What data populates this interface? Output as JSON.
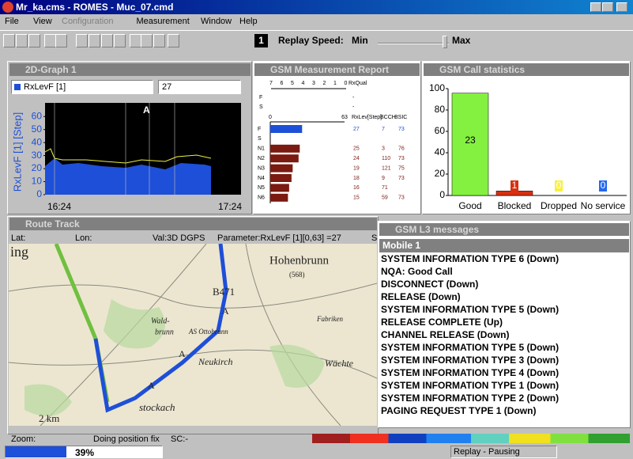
{
  "window": {
    "title": "Mr_ka.cms - ROMES - Muc_07.cmd"
  },
  "menu": [
    "File",
    "View",
    "Configuration",
    "Measurement",
    "Window",
    "Help"
  ],
  "toolbar": {
    "badge": "1",
    "replay_label": "Replay Speed:",
    "min": "Min",
    "max": "Max"
  },
  "graph_2d": {
    "title": "2D-Graph 1",
    "parameter": "RxLevF [1]",
    "value": "27",
    "y_label": "RxLevF [1] [Step]",
    "ylim": [
      0,
      65
    ],
    "yticks": [
      0,
      10,
      20,
      30,
      40,
      50,
      60
    ],
    "x_labels": [
      "16:24",
      "17:24"
    ],
    "marker": "A"
  },
  "measurement_report": {
    "title": "GSM Measurement Report",
    "rxqual_scale": [
      "7",
      "6",
      "5",
      "4",
      "3",
      "2",
      "1",
      "0"
    ],
    "rxqual_label": "RxQual",
    "rxqual_rows": [
      "F",
      "S"
    ],
    "rxqual_values": [
      "-",
      "-"
    ],
    "xlim": [
      0,
      63
    ],
    "columns": [
      "RxLev[Step]",
      "BCCH",
      "BSIC"
    ],
    "rows": [
      {
        "name": "F",
        "rxlev": 27,
        "bcch": 7,
        "bsic": 73
      },
      {
        "name": "S",
        "rxlev": null,
        "bcch": null,
        "bsic": null
      },
      {
        "name": "N1",
        "rxlev": 25,
        "bcch": 3,
        "bsic": 76
      },
      {
        "name": "N2",
        "rxlev": 24,
        "bcch": 110,
        "bsic": 73
      },
      {
        "name": "N3",
        "rxlev": 19,
        "bcch": 121,
        "bsic": 75
      },
      {
        "name": "N4",
        "rxlev": 18,
        "bcch": 9,
        "bsic": 73
      },
      {
        "name": "N5",
        "rxlev": 16,
        "bcch": 71,
        "bsic": null
      },
      {
        "name": "N6",
        "rxlev": 15,
        "bcch": 59,
        "bsic": 73
      }
    ],
    "serving_color": "#1e4fd8",
    "neighbour_color": "#7a1a10"
  },
  "call_statistics": {
    "title": "GSM Call statistics",
    "categories": [
      "Good",
      "Blocked",
      "Dropped",
      "No service"
    ],
    "values": [
      95.8,
      4.2,
      0,
      0
    ],
    "counts": [
      23,
      1,
      0,
      0
    ],
    "colors": [
      "#84f040",
      "#d83010",
      "#f8f040",
      "#2468f0"
    ],
    "ylim": [
      0,
      100
    ],
    "yticks": [
      0,
      20,
      40,
      60,
      80,
      100
    ]
  },
  "route_track": {
    "title": "Route Track",
    "lat": "Lat:",
    "lon": "Lon:",
    "val": "Val:3D DGPS",
    "parameter": "Parameter:RxLevF [1][0,63] =27",
    "extra": "S",
    "map_labels": [
      "ing",
      "Hohenbrunn",
      "(568)",
      "B471",
      "Wald-",
      "brunn",
      "AS Ottobrunn",
      "Neukirch",
      "Fabriken",
      "Wächte",
      "stockach",
      "2 km",
      "A",
      "A",
      "A"
    ]
  },
  "l3_messages": {
    "title": "GSM L3 messages",
    "mobile": "Mobile 1",
    "messages": [
      "SYSTEM INFORMATION TYPE 6 (Down)",
      "NQA: Good Call",
      "DISCONNECT (Down)",
      "RELEASE (Down)",
      "SYSTEM INFORMATION TYPE 5 (Down)",
      "RELEASE COMPLETE (Up)",
      "CHANNEL RELEASE (Down)",
      "SYSTEM INFORMATION TYPE 5 (Down)",
      "SYSTEM INFORMATION TYPE 3 (Down)",
      "SYSTEM INFORMATION TYPE 4 (Down)",
      "SYSTEM INFORMATION TYPE 1 (Down)",
      "SYSTEM INFORMATION TYPE 2 (Down)",
      "PAGING REQUEST TYPE 1 (Down)"
    ]
  },
  "status": {
    "zoom": "Zoom:",
    "fix": "Doing position fix",
    "sc": "SC:-",
    "progress": 39,
    "progress_label": "39%",
    "replay": "Replay - Pausing"
  }
}
